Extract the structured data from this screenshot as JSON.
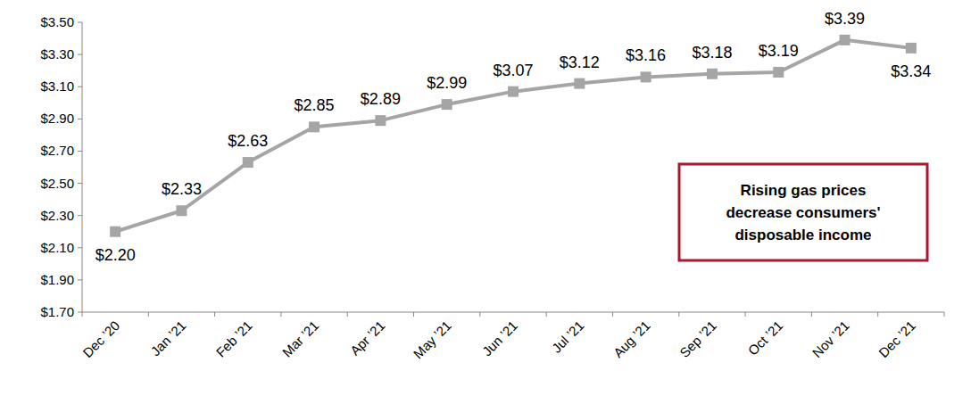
{
  "chart_data": {
    "type": "line",
    "categories": [
      "Dec ’20",
      "Jan ’21",
      "Feb ’21",
      "Mar ’21",
      "Apr ’21",
      "May ’21",
      "Jun ’21",
      "Jul ’21",
      "Aug ’21",
      "Sep ’21",
      "Oct ’21",
      "Nov ’21",
      "Dec ’21"
    ],
    "values": [
      2.2,
      2.33,
      2.63,
      2.85,
      2.89,
      2.99,
      3.07,
      3.12,
      3.16,
      3.18,
      3.19,
      3.39,
      3.34
    ],
    "value_labels": [
      "$2.20",
      "$2.33",
      "$2.63",
      "$2.85",
      "$2.89",
      "$2.99",
      "$3.07",
      "$3.12",
      "$3.16",
      "$3.18",
      "$3.19",
      "$3.39",
      "$3.34"
    ],
    "color": "#a5a5a5",
    "marker": "square",
    "data_labels": true,
    "grid": false,
    "ylim": [
      1.7,
      3.5
    ],
    "yticks": [
      {
        "value": 1.7,
        "label": "$1.70"
      },
      {
        "value": 1.9,
        "label": "$1.90"
      },
      {
        "value": 2.1,
        "label": "$2.10"
      },
      {
        "value": 2.3,
        "label": "$2.30"
      },
      {
        "value": 2.5,
        "label": "$2.50"
      },
      {
        "value": 2.7,
        "label": "$2.70"
      },
      {
        "value": 2.9,
        "label": "$2.90"
      },
      {
        "value": 3.1,
        "label": "$3.10"
      },
      {
        "value": 3.3,
        "label": "$3.30"
      },
      {
        "value": 3.5,
        "label": "$3.50"
      }
    ],
    "annotation": [
      "Rising gas prices",
      "decrease consumers'",
      "disposable income"
    ]
  }
}
